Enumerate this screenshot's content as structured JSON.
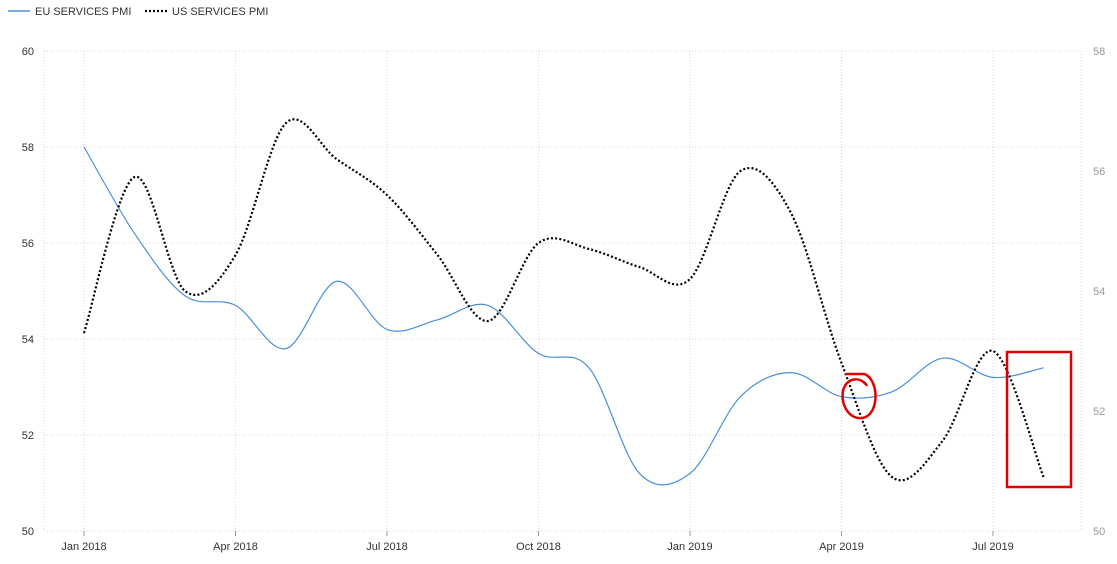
{
  "chart_data": {
    "type": "line",
    "legend_position": "top-left",
    "grid": true,
    "x_ticks": [
      "Jan 2018",
      "Apr 2018",
      "Jul 2018",
      "Oct 2018",
      "Jan 2019",
      "Apr 2019",
      "Jul 2019"
    ],
    "y_left": {
      "ylim": [
        50,
        60
      ],
      "ticks": [
        "50",
        "52",
        "54",
        "56",
        "58",
        "60"
      ]
    },
    "y_right": {
      "ylim": [
        50,
        58
      ],
      "ticks": [
        "50",
        "52",
        "54",
        "56",
        "58"
      ]
    },
    "x": [
      "2018-01",
      "2018-02",
      "2018-03",
      "2018-04",
      "2018-05",
      "2018-06",
      "2018-07",
      "2018-08",
      "2018-09",
      "2018-10",
      "2018-11",
      "2018-12",
      "2019-01",
      "2019-02",
      "2019-03",
      "2019-04",
      "2019-05",
      "2019-06",
      "2019-07",
      "2019-08"
    ],
    "series": [
      {
        "name": "EU SERVICES PMI",
        "axis": "left",
        "color": "#4a90d9",
        "style": "solid",
        "values": [
          58.0,
          56.2,
          54.9,
          54.7,
          53.8,
          55.2,
          54.2,
          54.4,
          54.7,
          53.7,
          53.4,
          51.2,
          51.2,
          52.8,
          53.3,
          52.8,
          52.9,
          53.6,
          53.2,
          53.4
        ]
      },
      {
        "name": "US SERVICES PMI",
        "axis": "right",
        "color": "#000000",
        "style": "dotted",
        "values": [
          53.3,
          55.9,
          54.0,
          54.6,
          56.8,
          56.2,
          55.6,
          54.6,
          53.5,
          54.8,
          54.7,
          54.4,
          54.2,
          56.0,
          55.3,
          52.8,
          50.9,
          51.5,
          53.0,
          50.9
        ]
      }
    ],
    "annotations": [
      {
        "shape": "circle",
        "color": "#e00000",
        "at_x": "2019-04"
      },
      {
        "shape": "rectangle",
        "color": "#e00000",
        "at_x": "2019-07"
      }
    ]
  }
}
